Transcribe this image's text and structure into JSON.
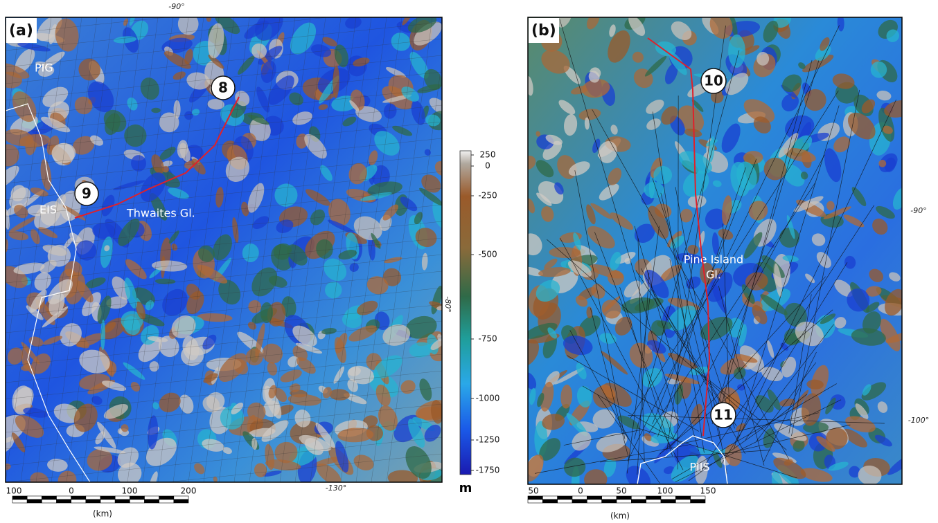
{
  "panel_a": {
    "label": "(a)",
    "top_longitude": "-90°",
    "right_latitude": "-80°",
    "bottom_longitude": "-130°",
    "places": [
      "PIG",
      "EIS",
      "Thwaites Gl."
    ],
    "profile_markers": [
      "8",
      "9"
    ],
    "scale_bar": {
      "ticks": [
        "100",
        "0",
        "100",
        "200"
      ],
      "unit": "(km)"
    }
  },
  "panel_b": {
    "label": "(b)",
    "right_longitudes": [
      "-90°",
      "-100°"
    ],
    "places": [
      "Pine Island",
      "Gl.",
      "PIIS"
    ],
    "profile_markers": [
      "10",
      "11"
    ],
    "scale_bar": {
      "ticks": [
        "50",
        "0",
        "50",
        "100",
        "150"
      ],
      "unit": "(km)"
    }
  },
  "colorbar": {
    "ticks": [
      "250",
      "0",
      "-250",
      "-500",
      "-750",
      "-1000",
      "-1250",
      "-1750"
    ],
    "unit": "m"
  }
}
